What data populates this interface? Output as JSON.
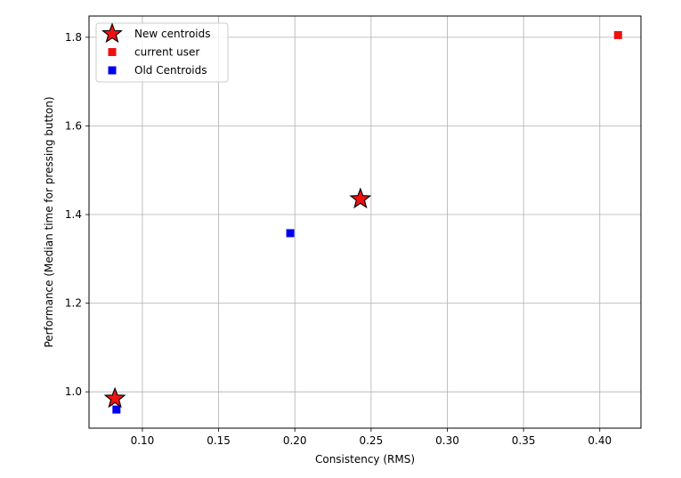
{
  "chart_data": {
    "type": "scatter",
    "title": "",
    "xlabel": "Consistency (RMS)",
    "ylabel": "Performance (Median time for pressing button)",
    "xlim": [
      0.065,
      0.427
    ],
    "ylim": [
      0.918,
      1.848
    ],
    "xticks": [
      "0.10",
      "0.15",
      "0.20",
      "0.25",
      "0.30",
      "0.35",
      "0.40"
    ],
    "yticks": [
      "1.0",
      "1.2",
      "1.4",
      "1.6",
      "1.8"
    ],
    "grid": true,
    "legend_position": "top-left",
    "series": [
      {
        "name": "New centroids",
        "marker": "star",
        "color": "#ee1111",
        "edge_color": "#000000",
        "points": [
          [
            0.082,
            0.985
          ],
          [
            0.243,
            1.435
          ]
        ]
      },
      {
        "name": "current user",
        "marker": "square",
        "color": "#ee1111",
        "points": [
          [
            0.412,
            1.805
          ]
        ]
      },
      {
        "name": "Old Centroids",
        "marker": "square",
        "color": "#0000ee",
        "points": [
          [
            0.083,
            0.96
          ],
          [
            0.197,
            1.358
          ]
        ]
      }
    ]
  }
}
